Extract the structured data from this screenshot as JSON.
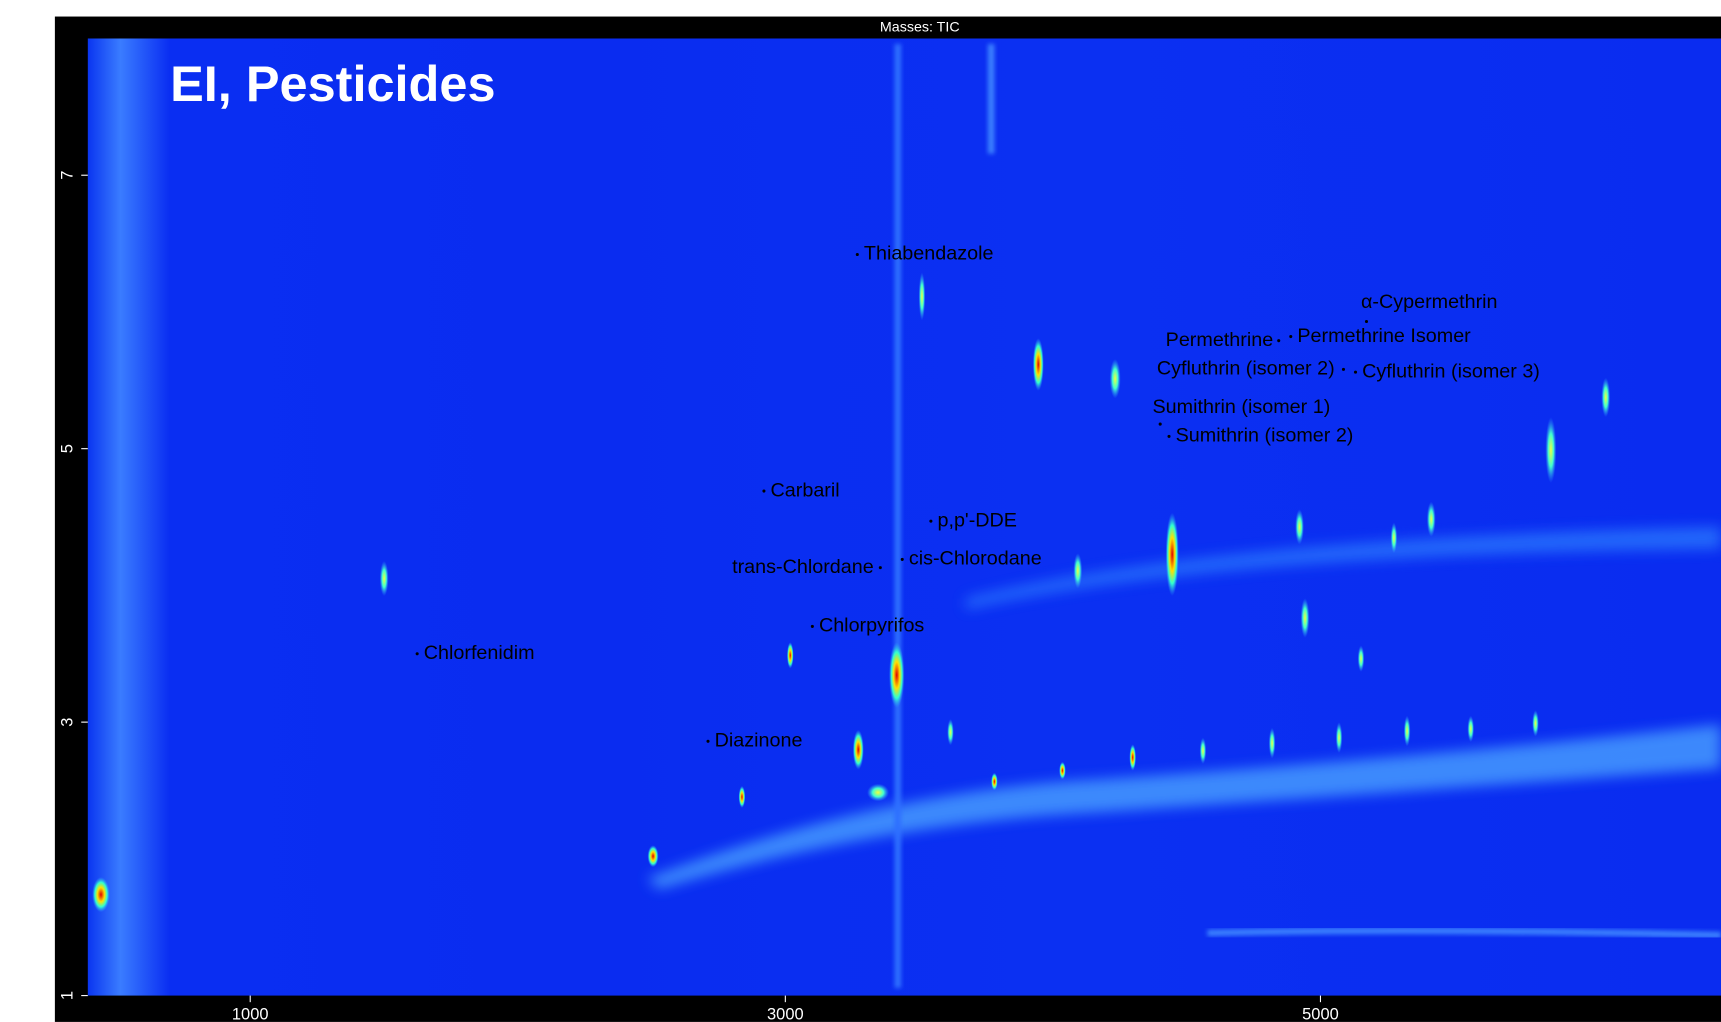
{
  "chart_data": {
    "type": "scatter",
    "header": "Masses:  TIC",
    "title": "EI, Pesticides",
    "xlim": [
      393,
      6497
    ],
    "ylim": [
      1,
      8
    ],
    "xticks": [
      1000,
      3000,
      5000
    ],
    "yticks": [
      1,
      3,
      5,
      7
    ],
    "point_color": "#000000",
    "labels": [
      "Thiabendazole",
      "α-Cypermethrin",
      "Permethrine",
      "Permethrine Isomer",
      "Cyfluthrin (isomer 2)",
      "Cyfluthrin (isomer 3)",
      "Sumithrin (isomer 1)",
      "Sumithrin (isomer 2)",
      "Carbaril",
      "p,p'-DDE",
      "cis-Chlorodane",
      "trans-Chlordane",
      "Chlorpyrifos",
      "Chlorfenidim",
      "Diazinone"
    ],
    "x": [
      3269,
      5172,
      4844,
      4889,
      5086,
      5131,
      4401,
      4434,
      2920,
      3544,
      3437,
      3355,
      3101,
      1624,
      2711
    ],
    "values": [
      6.42,
      5.93,
      5.79,
      5.82,
      5.58,
      5.56,
      5.18,
      5.09,
      4.69,
      4.47,
      4.19,
      4.13,
      3.7,
      3.5,
      2.86
    ]
  }
}
